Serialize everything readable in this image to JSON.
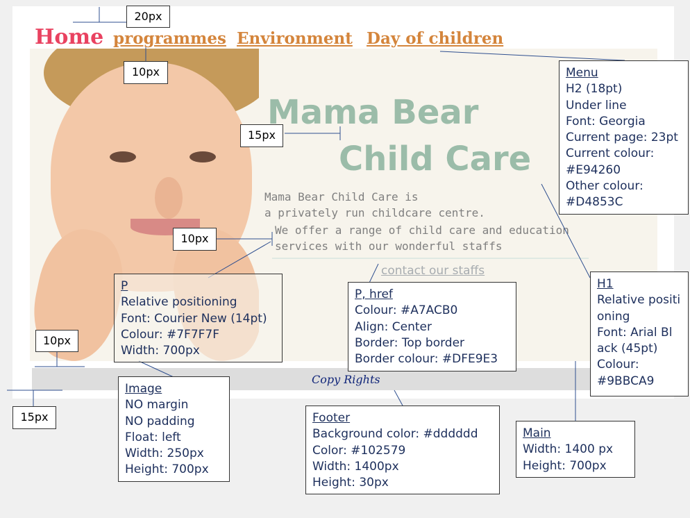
{
  "nav": {
    "home": "Home",
    "items": [
      "programmes",
      "Environment",
      "Day of children"
    ]
  },
  "heading": {
    "line1": "Mama Bear",
    "line2": "Child Care"
  },
  "paragraph": {
    "line1": "Mama Bear Child Care is",
    "line2": "a privately run childcare centre.",
    "line3": "We offer a range of child care and education",
    "line4": "services with our wonderful staffs"
  },
  "contact_link": "contact our staffs",
  "footer_text": "Copy Rights",
  "spacing_labels": [
    "20px",
    "10px",
    "15px",
    "10px",
    "10px",
    "15px"
  ],
  "annotations": {
    "menu": [
      "Menu",
      "H2 (18pt)",
      "Under line",
      "Font: Georgia",
      "Current page: 23pt",
      "Current colour:",
      "#E94260",
      "Other colour:",
      "#D4853C"
    ],
    "h1": [
      "H1",
      "Relative positi",
      "oning",
      "Font: Arial Bl",
      "ack (45pt)",
      "Colour:",
      "#9BBCA9"
    ],
    "p": [
      "P",
      "Relative positioning",
      "Font: Courier New (14pt)",
      "Colour: #7F7F7F",
      "Width: 700px"
    ],
    "p_href": [
      "P, href",
      "Colour: #A7ACB0",
      "Align: Center",
      "Border: Top border",
      "Border colour: #DFE9E3"
    ],
    "image": [
      "Image",
      "NO margin",
      "NO padding",
      "Float: left",
      "Width: 250px",
      "Height: 700px"
    ],
    "footer": [
      "Footer",
      "Background color: #dddddd",
      "Color: #102579",
      "Width: 1400px",
      "Height: 30px"
    ],
    "main": [
      "Main",
      "Width: 1400 px",
      "Height:  700px"
    ]
  },
  "colors": {
    "home": "#E94260",
    "nav": "#D4853C",
    "heading": "#9BBCA9",
    "paragraph": "#7F7F7F",
    "link": "#A7ACB0",
    "border": "#DFE9E3",
    "footer_bg": "#dddddd",
    "footer_text": "#102579"
  }
}
